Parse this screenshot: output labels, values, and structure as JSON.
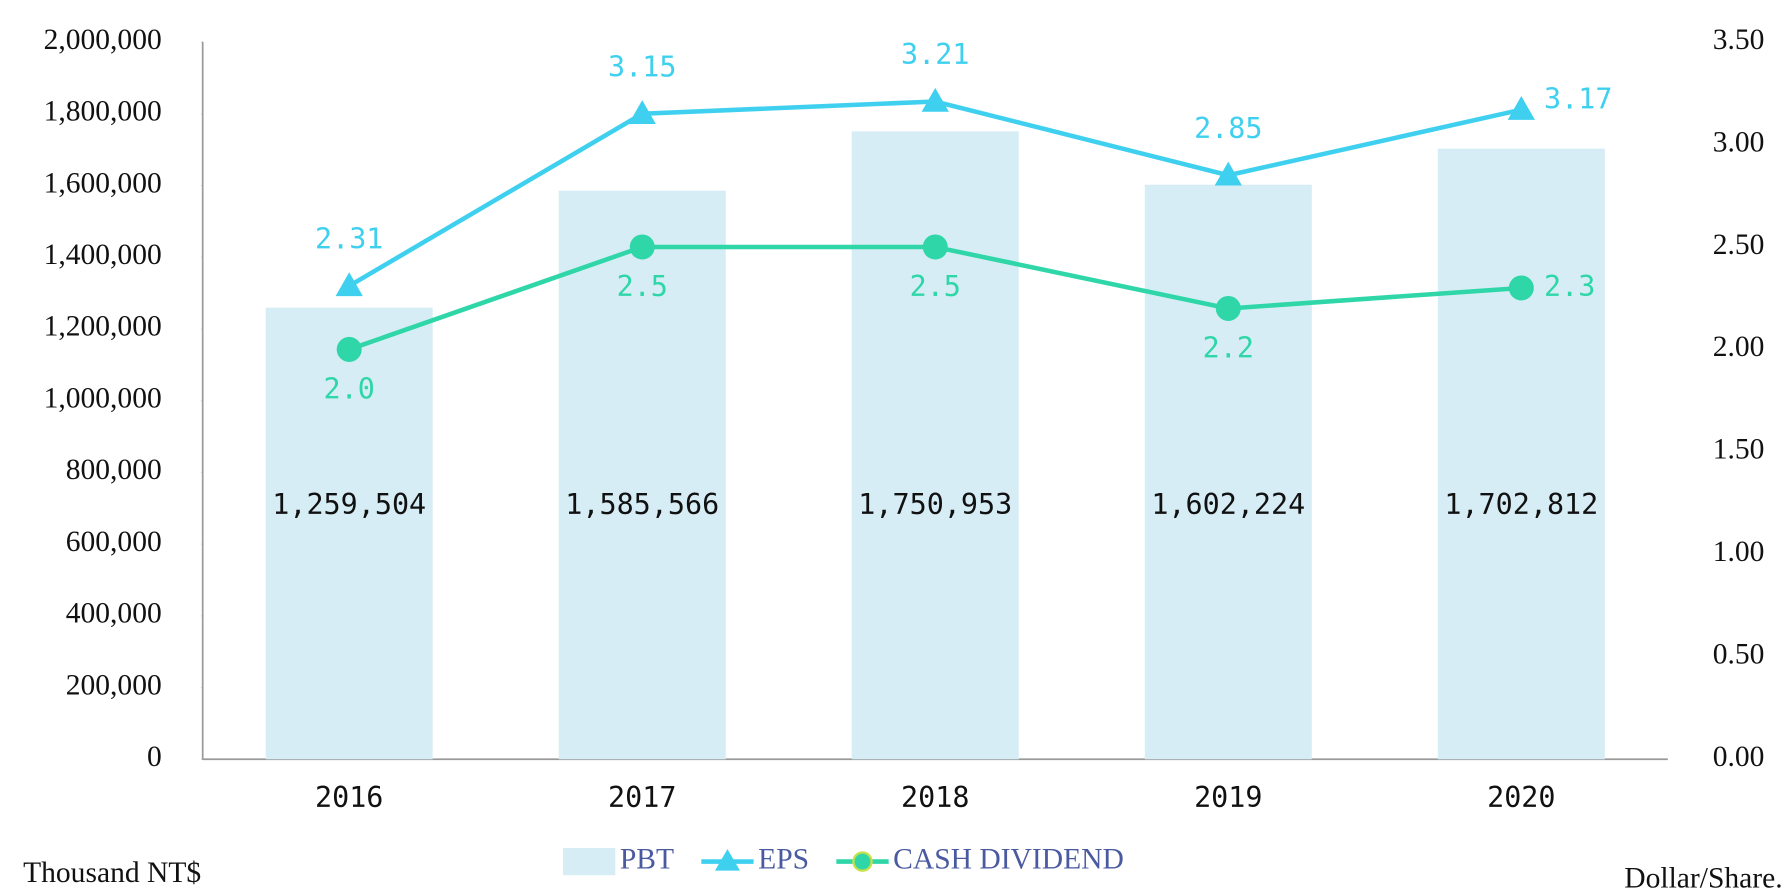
{
  "chart_data": {
    "type": "bar_line",
    "categories": [
      "2016",
      "2017",
      "2018",
      "2019",
      "2020"
    ],
    "series": [
      {
        "name": "PBT",
        "type": "bar",
        "color": "#d6edf5",
        "values": [
          1259504,
          1585566,
          1750953,
          1602224,
          1702812
        ],
        "value_labels": [
          "1,259,504",
          "1,585,566",
          "1,750,953",
          "1,602,224",
          "1,702,812"
        ]
      },
      {
        "name": "EPS",
        "type": "line",
        "axis": "y2",
        "marker": "triangle",
        "color": "#3fd0f0",
        "values": [
          2.31,
          3.15,
          3.21,
          2.85,
          3.17
        ]
      },
      {
        "name": "CASH DIVIDEND",
        "type": "line",
        "axis": "y2",
        "marker": "circle",
        "color": "#2fd6a8",
        "values": [
          2.0,
          2.5,
          2.5,
          2.2,
          2.3
        ],
        "value_labels": [
          "2.0",
          "2.5",
          "2.5",
          "2.2",
          "2.3"
        ]
      }
    ],
    "ylabel": "Thousand NT$",
    "y2label": "Dollar/Share.",
    "ylim": [
      0,
      2000000
    ],
    "yticks": [
      0,
      {
        "value": 200000,
        "label": "200,000"
      },
      {
        "value": 400000,
        "label": "400,000"
      },
      {
        "value": 600000,
        "label": "600,000"
      },
      {
        "value": 800000,
        "label": "800,000"
      },
      {
        "value": 1000000,
        "label": "1,000,000"
      },
      {
        "value": 1200000,
        "label": "1,200,000"
      },
      {
        "value": 1400000,
        "label": "1,400,000"
      },
      {
        "value": 1600000,
        "label": "1,600,000"
      },
      {
        "value": 1800000,
        "label": "1,800,000"
      },
      {
        "value": 2000000,
        "label": "2,000,000"
      }
    ],
    "y2lim": [
      0,
      3.5
    ],
    "y2ticks": [
      {
        "value": 0,
        "label": "0.00"
      },
      {
        "value": 0.5,
        "label": "0.50"
      },
      {
        "value": 1,
        "label": "1.00"
      },
      {
        "value": 1.5,
        "label": "1.50"
      },
      {
        "value": 2,
        "label": "2.00"
      },
      {
        "value": 2.5,
        "label": "2.50"
      },
      {
        "value": 3,
        "label": "3.00"
      },
      {
        "value": 3.5,
        "label": "3.50"
      }
    ],
    "legend": "bottom"
  }
}
